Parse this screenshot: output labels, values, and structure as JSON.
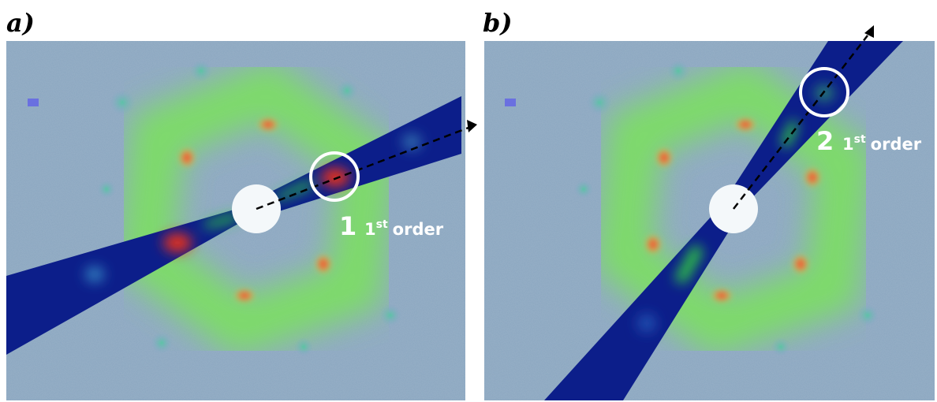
{
  "panels": [
    {
      "label": "a)",
      "spot_number": "1",
      "ordinal": "1",
      "ordinal_suffix": "st",
      "order_word": "order"
    },
    {
      "label": "b)",
      "spot_number": "2",
      "ordinal": "1",
      "ordinal_suffix": "st",
      "order_word": "order"
    }
  ]
}
